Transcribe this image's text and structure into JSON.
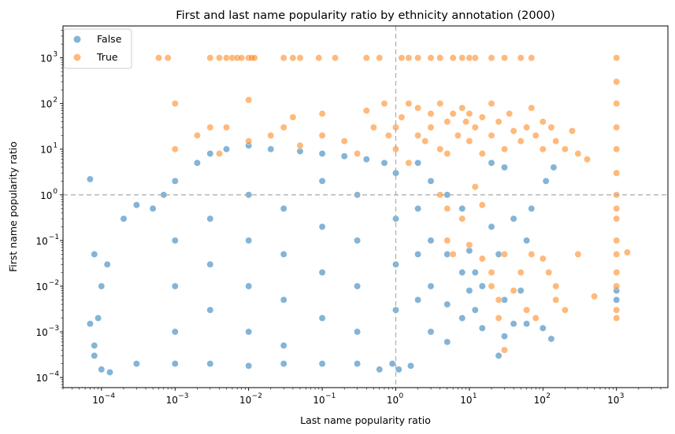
{
  "chart_data": {
    "type": "scatter",
    "title": "First and last name popularity ratio by ethnicity annotation (2000)",
    "xlabel": "Last name popularity ratio",
    "ylabel": "First name popularity ratio",
    "xscale": "log",
    "yscale": "log",
    "xlim": [
      3e-05,
      5000
    ],
    "ylim": [
      6e-05,
      5000
    ],
    "x_ticks": [
      {
        "value": 0.0001,
        "base": "10",
        "exp": "−4"
      },
      {
        "value": 0.001,
        "base": "10",
        "exp": "−3"
      },
      {
        "value": 0.01,
        "base": "10",
        "exp": "−2"
      },
      {
        "value": 0.1,
        "base": "10",
        "exp": "−1"
      },
      {
        "value": 1,
        "base": "10",
        "exp": "0"
      },
      {
        "value": 10,
        "base": "10",
        "exp": "1"
      },
      {
        "value": 100,
        "base": "10",
        "exp": "2"
      },
      {
        "value": 1000,
        "base": "10",
        "exp": "3"
      }
    ],
    "y_ticks": [
      {
        "value": 0.0001,
        "base": "10",
        "exp": "−4"
      },
      {
        "value": 0.001,
        "base": "10",
        "exp": "−3"
      },
      {
        "value": 0.01,
        "base": "10",
        "exp": "−2"
      },
      {
        "value": 0.1,
        "base": "10",
        "exp": "−1"
      },
      {
        "value": 1,
        "base": "10",
        "exp": "0"
      },
      {
        "value": 10,
        "base": "10",
        "exp": "1"
      },
      {
        "value": 100,
        "base": "10",
        "exp": "2"
      },
      {
        "value": 1000,
        "base": "10",
        "exp": "3"
      }
    ],
    "reference_lines": {
      "x": 1,
      "y": 1,
      "style": "dashed",
      "color": "#b0b0b0"
    },
    "grid": false,
    "legend": {
      "placement": "top-left"
    },
    "series": [
      {
        "name": "False",
        "color": "#1f77b4",
        "points": [
          [
            8e-05,
            0.0005
          ],
          [
            9e-05,
            0.002
          ],
          [
            0.0001,
            0.01
          ],
          [
            0.00012,
            0.03
          ],
          [
            8e-05,
            0.05
          ],
          [
            8e-05,
            0.0003
          ],
          [
            7e-05,
            0.0015
          ],
          [
            7e-05,
            2.2
          ],
          [
            0.0001,
            0.00015
          ],
          [
            0.00013,
            0.00013
          ],
          [
            0.0002,
            0.3
          ],
          [
            0.0003,
            0.6
          ],
          [
            0.0003,
            0.0002
          ],
          [
            0.0005,
            0.5
          ],
          [
            0.0007,
            1.0
          ],
          [
            0.001,
            2.0
          ],
          [
            0.002,
            5.0
          ],
          [
            0.003,
            8.0
          ],
          [
            0.005,
            10.0
          ],
          [
            0.01,
            12.0
          ],
          [
            0.02,
            10.0
          ],
          [
            0.05,
            9.0
          ],
          [
            0.1,
            8.0
          ],
          [
            0.2,
            7.0
          ],
          [
            0.4,
            6.0
          ],
          [
            0.7,
            5.0
          ],
          [
            0.001,
            0.0002
          ],
          [
            0.003,
            0.0002
          ],
          [
            0.01,
            0.00018
          ],
          [
            0.03,
            0.0002
          ],
          [
            0.1,
            0.0002
          ],
          [
            0.3,
            0.0002
          ],
          [
            0.6,
            0.00015
          ],
          [
            0.9,
            0.0002
          ],
          [
            1.1,
            0.00015
          ],
          [
            1.6,
            0.00018
          ],
          [
            0.001,
            0.1
          ],
          [
            0.001,
            0.01
          ],
          [
            0.001,
            0.001
          ],
          [
            0.003,
            0.3
          ],
          [
            0.003,
            0.03
          ],
          [
            0.003,
            0.003
          ],
          [
            0.01,
            1.0
          ],
          [
            0.01,
            0.1
          ],
          [
            0.01,
            0.01
          ],
          [
            0.01,
            0.001
          ],
          [
            0.03,
            0.5
          ],
          [
            0.03,
            0.05
          ],
          [
            0.03,
            0.005
          ],
          [
            0.03,
            0.0005
          ],
          [
            0.1,
            2.0
          ],
          [
            0.1,
            0.2
          ],
          [
            0.1,
            0.02
          ],
          [
            0.1,
            0.002
          ],
          [
            0.3,
            1.0
          ],
          [
            0.3,
            0.1
          ],
          [
            0.3,
            0.01
          ],
          [
            0.3,
            0.001
          ],
          [
            1.0,
            3.0
          ],
          [
            1.0,
            0.3
          ],
          [
            1.0,
            0.03
          ],
          [
            1.0,
            0.003
          ],
          [
            2.0,
            5.0
          ],
          [
            2.0,
            0.5
          ],
          [
            2.0,
            0.05
          ],
          [
            2.0,
            0.005
          ],
          [
            3.0,
            2.0
          ],
          [
            3.0,
            0.1
          ],
          [
            3.0,
            0.01
          ],
          [
            3.0,
            0.001
          ],
          [
            5.0,
            1.0
          ],
          [
            5.0,
            0.05
          ],
          [
            5.0,
            0.004
          ],
          [
            5.0,
            0.0006
          ],
          [
            8.0,
            0.5
          ],
          [
            8.0,
            0.02
          ],
          [
            8.0,
            0.002
          ],
          [
            10.0,
            0.06
          ],
          [
            10.0,
            0.008
          ],
          [
            12.0,
            0.02
          ],
          [
            12.0,
            0.003
          ],
          [
            15.0,
            0.01
          ],
          [
            15.0,
            0.0012
          ],
          [
            20.0,
            0.2
          ],
          [
            25.0,
            0.05
          ],
          [
            30.0,
            0.005
          ],
          [
            40.0,
            0.0015
          ],
          [
            50.0,
            0.008
          ],
          [
            60.0,
            0.1
          ],
          [
            70.0,
            0.5
          ],
          [
            20.0,
            5.0
          ],
          [
            30.0,
            4.0
          ],
          [
            40.0,
            0.3
          ],
          [
            30.0,
            0.0008
          ],
          [
            25.0,
            0.0003
          ],
          [
            60.0,
            0.0015
          ],
          [
            100.0,
            0.0012
          ],
          [
            130.0,
            0.0007
          ],
          [
            110.0,
            2.0
          ],
          [
            140.0,
            4.0
          ],
          [
            1000.0,
            0.008
          ],
          [
            1000.0,
            0.005
          ]
        ]
      },
      {
        "name": "True",
        "color": "#ff7f0e",
        "points": [
          [
            0.0006,
            1000
          ],
          [
            0.0008,
            1000
          ],
          [
            0.003,
            1000
          ],
          [
            0.004,
            1000
          ],
          [
            0.005,
            1000
          ],
          [
            0.006,
            1000
          ],
          [
            0.007,
            1000
          ],
          [
            0.008,
            1000
          ],
          [
            0.01,
            1000
          ],
          [
            0.011,
            1000
          ],
          [
            0.012,
            1000
          ],
          [
            0.03,
            1000
          ],
          [
            0.04,
            1000
          ],
          [
            0.05,
            1000
          ],
          [
            0.09,
            1000
          ],
          [
            0.15,
            1000
          ],
          [
            0.4,
            1000
          ],
          [
            0.6,
            1000
          ],
          [
            1.2,
            1000
          ],
          [
            1.5,
            1000
          ],
          [
            2.0,
            1000
          ],
          [
            3.0,
            1000
          ],
          [
            4.0,
            1000
          ],
          [
            6.0,
            1000
          ],
          [
            8.0,
            1000
          ],
          [
            10.0,
            1000
          ],
          [
            12.0,
            1000
          ],
          [
            20.0,
            1000
          ],
          [
            30.0,
            1000
          ],
          [
            50.0,
            1000
          ],
          [
            70.0,
            1000
          ],
          [
            1000.0,
            1000
          ],
          [
            0.001,
            10
          ],
          [
            0.001,
            100
          ],
          [
            0.002,
            20
          ],
          [
            0.003,
            30
          ],
          [
            0.004,
            8
          ],
          [
            0.005,
            30
          ],
          [
            0.01,
            15
          ],
          [
            0.01,
            120
          ],
          [
            0.02,
            20
          ],
          [
            0.03,
            30
          ],
          [
            0.04,
            50
          ],
          [
            0.05,
            12
          ],
          [
            0.1,
            20
          ],
          [
            0.1,
            60
          ],
          [
            0.2,
            15
          ],
          [
            0.3,
            8
          ],
          [
            0.4,
            70
          ],
          [
            0.5,
            30
          ],
          [
            0.7,
            100
          ],
          [
            0.8,
            20
          ],
          [
            1.0,
            30
          ],
          [
            1.0,
            10
          ],
          [
            1.2,
            50
          ],
          [
            1.5,
            100
          ],
          [
            1.5,
            5
          ],
          [
            2.0,
            80
          ],
          [
            2.0,
            20
          ],
          [
            2.5,
            15
          ],
          [
            3.0,
            60
          ],
          [
            3.0,
            30
          ],
          [
            4.0,
            100
          ],
          [
            4.0,
            10
          ],
          [
            5.0,
            40
          ],
          [
            5.0,
            8
          ],
          [
            6.0,
            60
          ],
          [
            7.0,
            20
          ],
          [
            8.0,
            80
          ],
          [
            9.0,
            40
          ],
          [
            10.0,
            15
          ],
          [
            10.0,
            60
          ],
          [
            12.0,
            30
          ],
          [
            15.0,
            8
          ],
          [
            15.0,
            50
          ],
          [
            20.0,
            20
          ],
          [
            20.0,
            100
          ],
          [
            25.0,
            40
          ],
          [
            30.0,
            10
          ],
          [
            35.0,
            60
          ],
          [
            40.0,
            25
          ],
          [
            50.0,
            15
          ],
          [
            60.0,
            30
          ],
          [
            70.0,
            80
          ],
          [
            80.0,
            20
          ],
          [
            100.0,
            10
          ],
          [
            100.0,
            40
          ],
          [
            130.0,
            30
          ],
          [
            150.0,
            15
          ],
          [
            200.0,
            10
          ],
          [
            250.0,
            25
          ],
          [
            300.0,
            8
          ],
          [
            400.0,
            6
          ],
          [
            4.0,
            1.0
          ],
          [
            5.0,
            0.5
          ],
          [
            5.0,
            0.1
          ],
          [
            6.0,
            0.05
          ],
          [
            8.0,
            0.3
          ],
          [
            10.0,
            0.08
          ],
          [
            12.0,
            1.5
          ],
          [
            15.0,
            0.04
          ],
          [
            15.0,
            0.6
          ],
          [
            20.0,
            0.02
          ],
          [
            20.0,
            0.01
          ],
          [
            25.0,
            0.005
          ],
          [
            25.0,
            0.002
          ],
          [
            30.0,
            0.05
          ],
          [
            30.0,
            0.0004
          ],
          [
            40.0,
            0.008
          ],
          [
            50.0,
            0.02
          ],
          [
            60.0,
            0.003
          ],
          [
            70.0,
            0.05
          ],
          [
            80.0,
            0.002
          ],
          [
            100.0,
            0.04
          ],
          [
            120.0,
            0.02
          ],
          [
            150.0,
            0.01
          ],
          [
            150.0,
            0.005
          ],
          [
            200.0,
            0.003
          ],
          [
            300.0,
            0.05
          ],
          [
            500.0,
            0.006
          ],
          [
            1400.0,
            0.055
          ],
          [
            1000.0,
            300
          ],
          [
            1000.0,
            100
          ],
          [
            1000.0,
            30
          ],
          [
            1000.0,
            10
          ],
          [
            1000.0,
            3
          ],
          [
            1000.0,
            1
          ],
          [
            1000.0,
            0.5
          ],
          [
            1000.0,
            0.3
          ],
          [
            1000.0,
            0.1
          ],
          [
            1000.0,
            0.05
          ],
          [
            1000.0,
            0.02
          ],
          [
            1000.0,
            0.01
          ],
          [
            1000.0,
            0.003
          ],
          [
            1000.0,
            0.002
          ]
        ]
      }
    ]
  }
}
